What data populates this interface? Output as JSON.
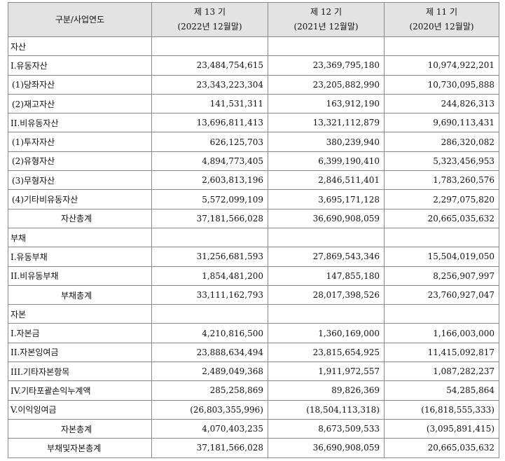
{
  "header": {
    "label": "구분/사업연도",
    "periods": [
      {
        "term": "제 13 기",
        "date": "(2022년 12월말)"
      },
      {
        "term": "제 12 기",
        "date": "(2021년 12월말)"
      },
      {
        "term": "제 11 기",
        "date": "(2020년 12월말)"
      }
    ]
  },
  "rows": [
    {
      "label": "자산",
      "type": "sec",
      "values": [
        "",
        "",
        ""
      ]
    },
    {
      "label": "I.유동자산",
      "type": "item",
      "values": [
        "23,484,754,615",
        "23,369,795,180",
        "10,974,922,201"
      ]
    },
    {
      "label": "(1)당좌자산",
      "type": "sub",
      "values": [
        "23,343,223,304",
        "23,205,882,990",
        "10,730,095,888"
      ]
    },
    {
      "label": "(2)재고자산",
      "type": "sub",
      "values": [
        "141,531,311",
        "163,912,190",
        "244,826,313"
      ]
    },
    {
      "label": "II.비유동자산",
      "type": "item",
      "values": [
        "13,696,811,413",
        "13,321,112,879",
        "9,690,113,431"
      ]
    },
    {
      "label": "(1)투자자산",
      "type": "sub",
      "values": [
        "626,125,703",
        "380,239,940",
        "286,320,082"
      ]
    },
    {
      "label": "(2)유형자산",
      "type": "sub",
      "values": [
        "4,894,773,405",
        "6,399,190,410",
        "5,323,456,953"
      ]
    },
    {
      "label": "(3)무형자산",
      "type": "sub",
      "values": [
        "2,603,813,196",
        "2,846,511,401",
        "1,783,260,576"
      ]
    },
    {
      "label": "(4)기타비유동자산",
      "type": "sub",
      "values": [
        "5,572,099,109",
        "3,695,171,128",
        "2,297,075,820"
      ]
    },
    {
      "label": "자산총계",
      "type": "total",
      "values": [
        "37,181,566,028",
        "36,690,908,059",
        "20,665,035,632"
      ]
    },
    {
      "label": "부채",
      "type": "sec",
      "values": [
        "",
        "",
        ""
      ]
    },
    {
      "label": "I.유동부채",
      "type": "item",
      "values": [
        "31,256,681,593",
        "27,869,543,346",
        "15,504,019,050"
      ]
    },
    {
      "label": "II.비유동부채",
      "type": "item",
      "values": [
        "1,854,481,200",
        "147,855,180",
        "8,256,907,997"
      ]
    },
    {
      "label": "부채총계",
      "type": "total",
      "values": [
        "33,111,162,793",
        "28,017,398,526",
        "23,760,927,047"
      ]
    },
    {
      "label": "자본",
      "type": "sec",
      "values": [
        "",
        "",
        ""
      ]
    },
    {
      "label": "I.자본금",
      "type": "item",
      "values": [
        "4,210,816,500",
        "1,360,169,000",
        "1,166,003,000"
      ]
    },
    {
      "label": "II.자본잉여금",
      "type": "item",
      "values": [
        "23,888,634,494",
        "23,815,654,925",
        "11,415,092,817"
      ]
    },
    {
      "label": "III.기타자본항목",
      "type": "item",
      "values": [
        "2,489,049,368",
        "1,911,972,557",
        "1,087,282,237"
      ]
    },
    {
      "label": "IV.기타포괄손익누계액",
      "type": "item",
      "values": [
        "285,258,869",
        "89,826,369",
        "54,285,864"
      ]
    },
    {
      "label": "V.이익잉여금",
      "type": "item",
      "values": [
        "(26,803,355,996)",
        "(18,504,113,318)",
        "(16,818,555,333)"
      ]
    },
    {
      "label": "자본총계",
      "type": "total",
      "values": [
        "4,070,403,235",
        "8,673,509,533",
        "(3,095,891,415)"
      ]
    },
    {
      "label": "부채및자본총계",
      "type": "grand",
      "values": [
        "37,181,566,028",
        "36,690,908,059",
        "20,665,035,632"
      ]
    }
  ]
}
